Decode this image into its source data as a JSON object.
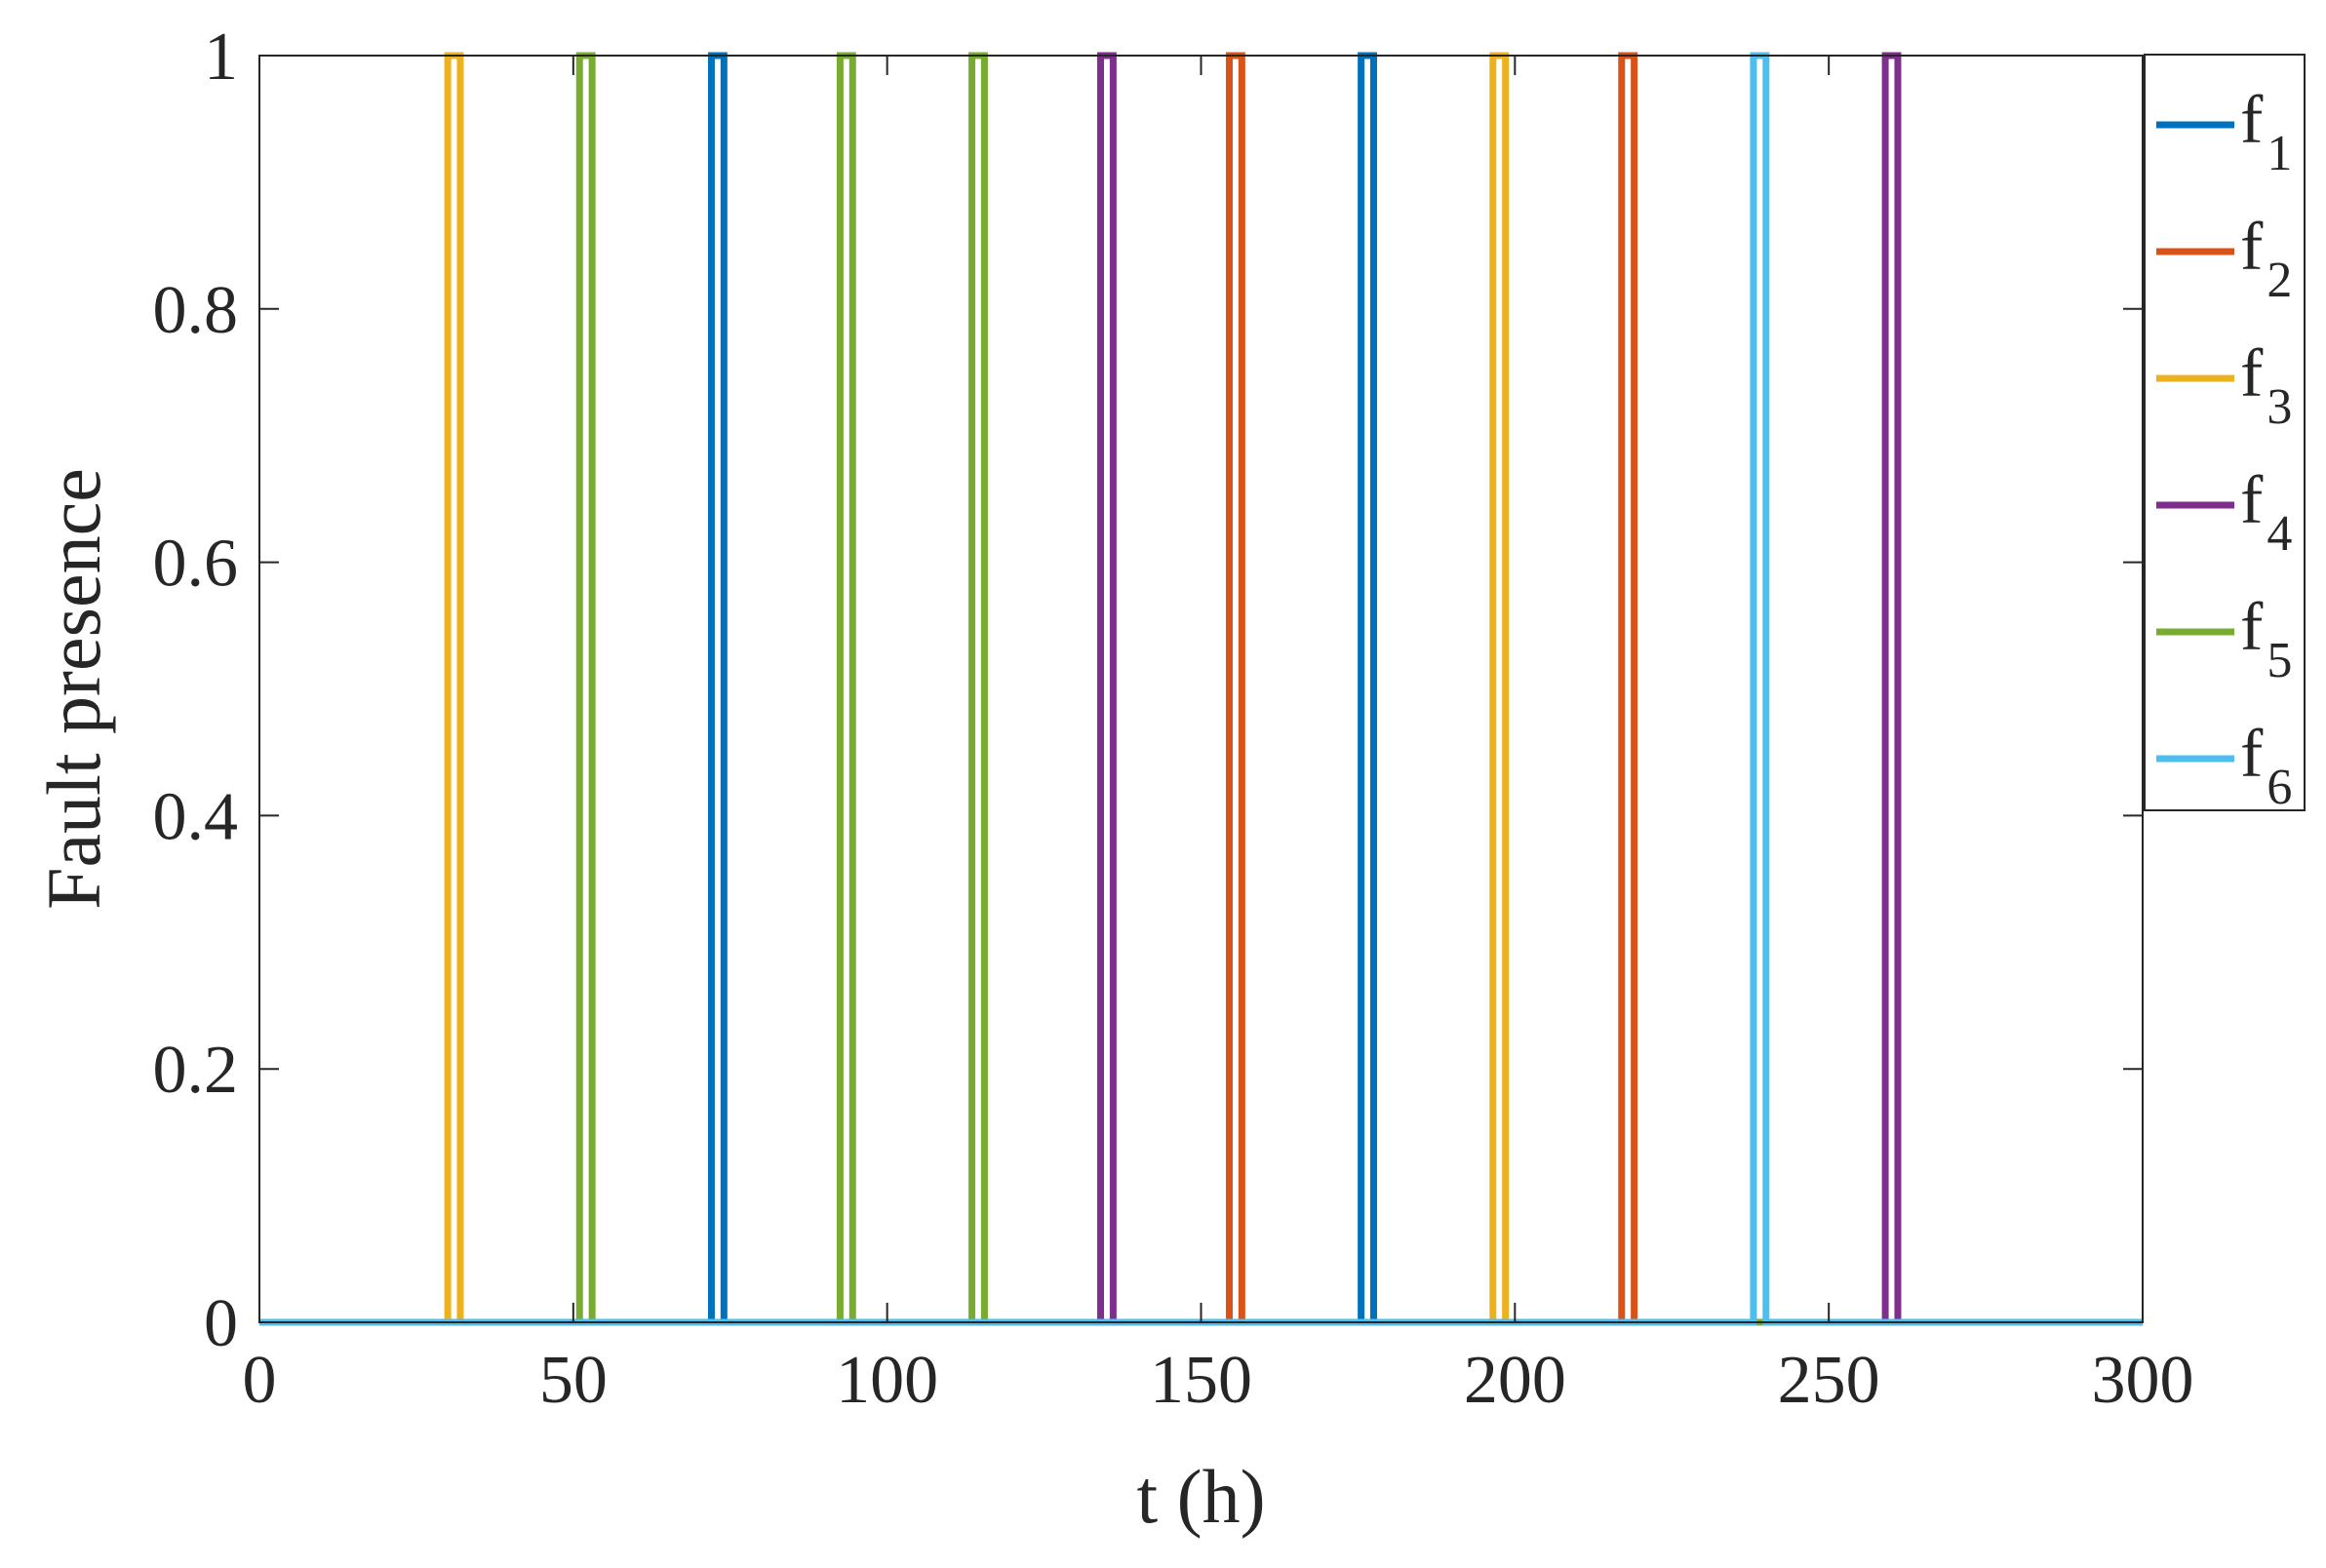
{
  "chart_data": {
    "type": "line",
    "title": "",
    "xlabel": "t (h)",
    "ylabel": "Fault presence",
    "xlim": [
      0,
      300
    ],
    "ylim": [
      0,
      1
    ],
    "xticks": [
      0,
      50,
      100,
      150,
      200,
      250,
      300
    ],
    "yticks": [
      0,
      0.2,
      0.4,
      0.6,
      0.8,
      1
    ],
    "xtick_labels": [
      "0",
      "50",
      "100",
      "150",
      "200",
      "250",
      "300"
    ],
    "ytick_labels": [
      "0",
      "0.2",
      "0.4",
      "0.6",
      "0.8",
      "1"
    ],
    "grid": false,
    "legend_position": "outside-right-top",
    "series": [
      {
        "name": "f",
        "sub": "1",
        "color": "#0072BD",
        "pulses": [
          [
            72,
            74
          ],
          [
            175.5,
            177.5
          ]
        ]
      },
      {
        "name": "f",
        "sub": "2",
        "color": "#D95319",
        "pulses": [
          [
            154.5,
            156.5
          ],
          [
            217,
            219
          ]
        ]
      },
      {
        "name": "f",
        "sub": "3",
        "color": "#EDB120",
        "pulses": [
          [
            30,
            32
          ],
          [
            196.5,
            198.5
          ]
        ]
      },
      {
        "name": "f",
        "sub": "4",
        "color": "#7E2F8E",
        "pulses": [
          [
            134,
            136
          ],
          [
            259,
            261
          ]
        ]
      },
      {
        "name": "f",
        "sub": "5",
        "color": "#77AC30",
        "pulses": [
          [
            51,
            53
          ],
          [
            92.5,
            94.5
          ],
          [
            113.5,
            115.5
          ]
        ]
      },
      {
        "name": "f",
        "sub": "6",
        "color": "#4DBEEE",
        "pulses": [
          [
            238,
            240
          ]
        ]
      }
    ]
  }
}
